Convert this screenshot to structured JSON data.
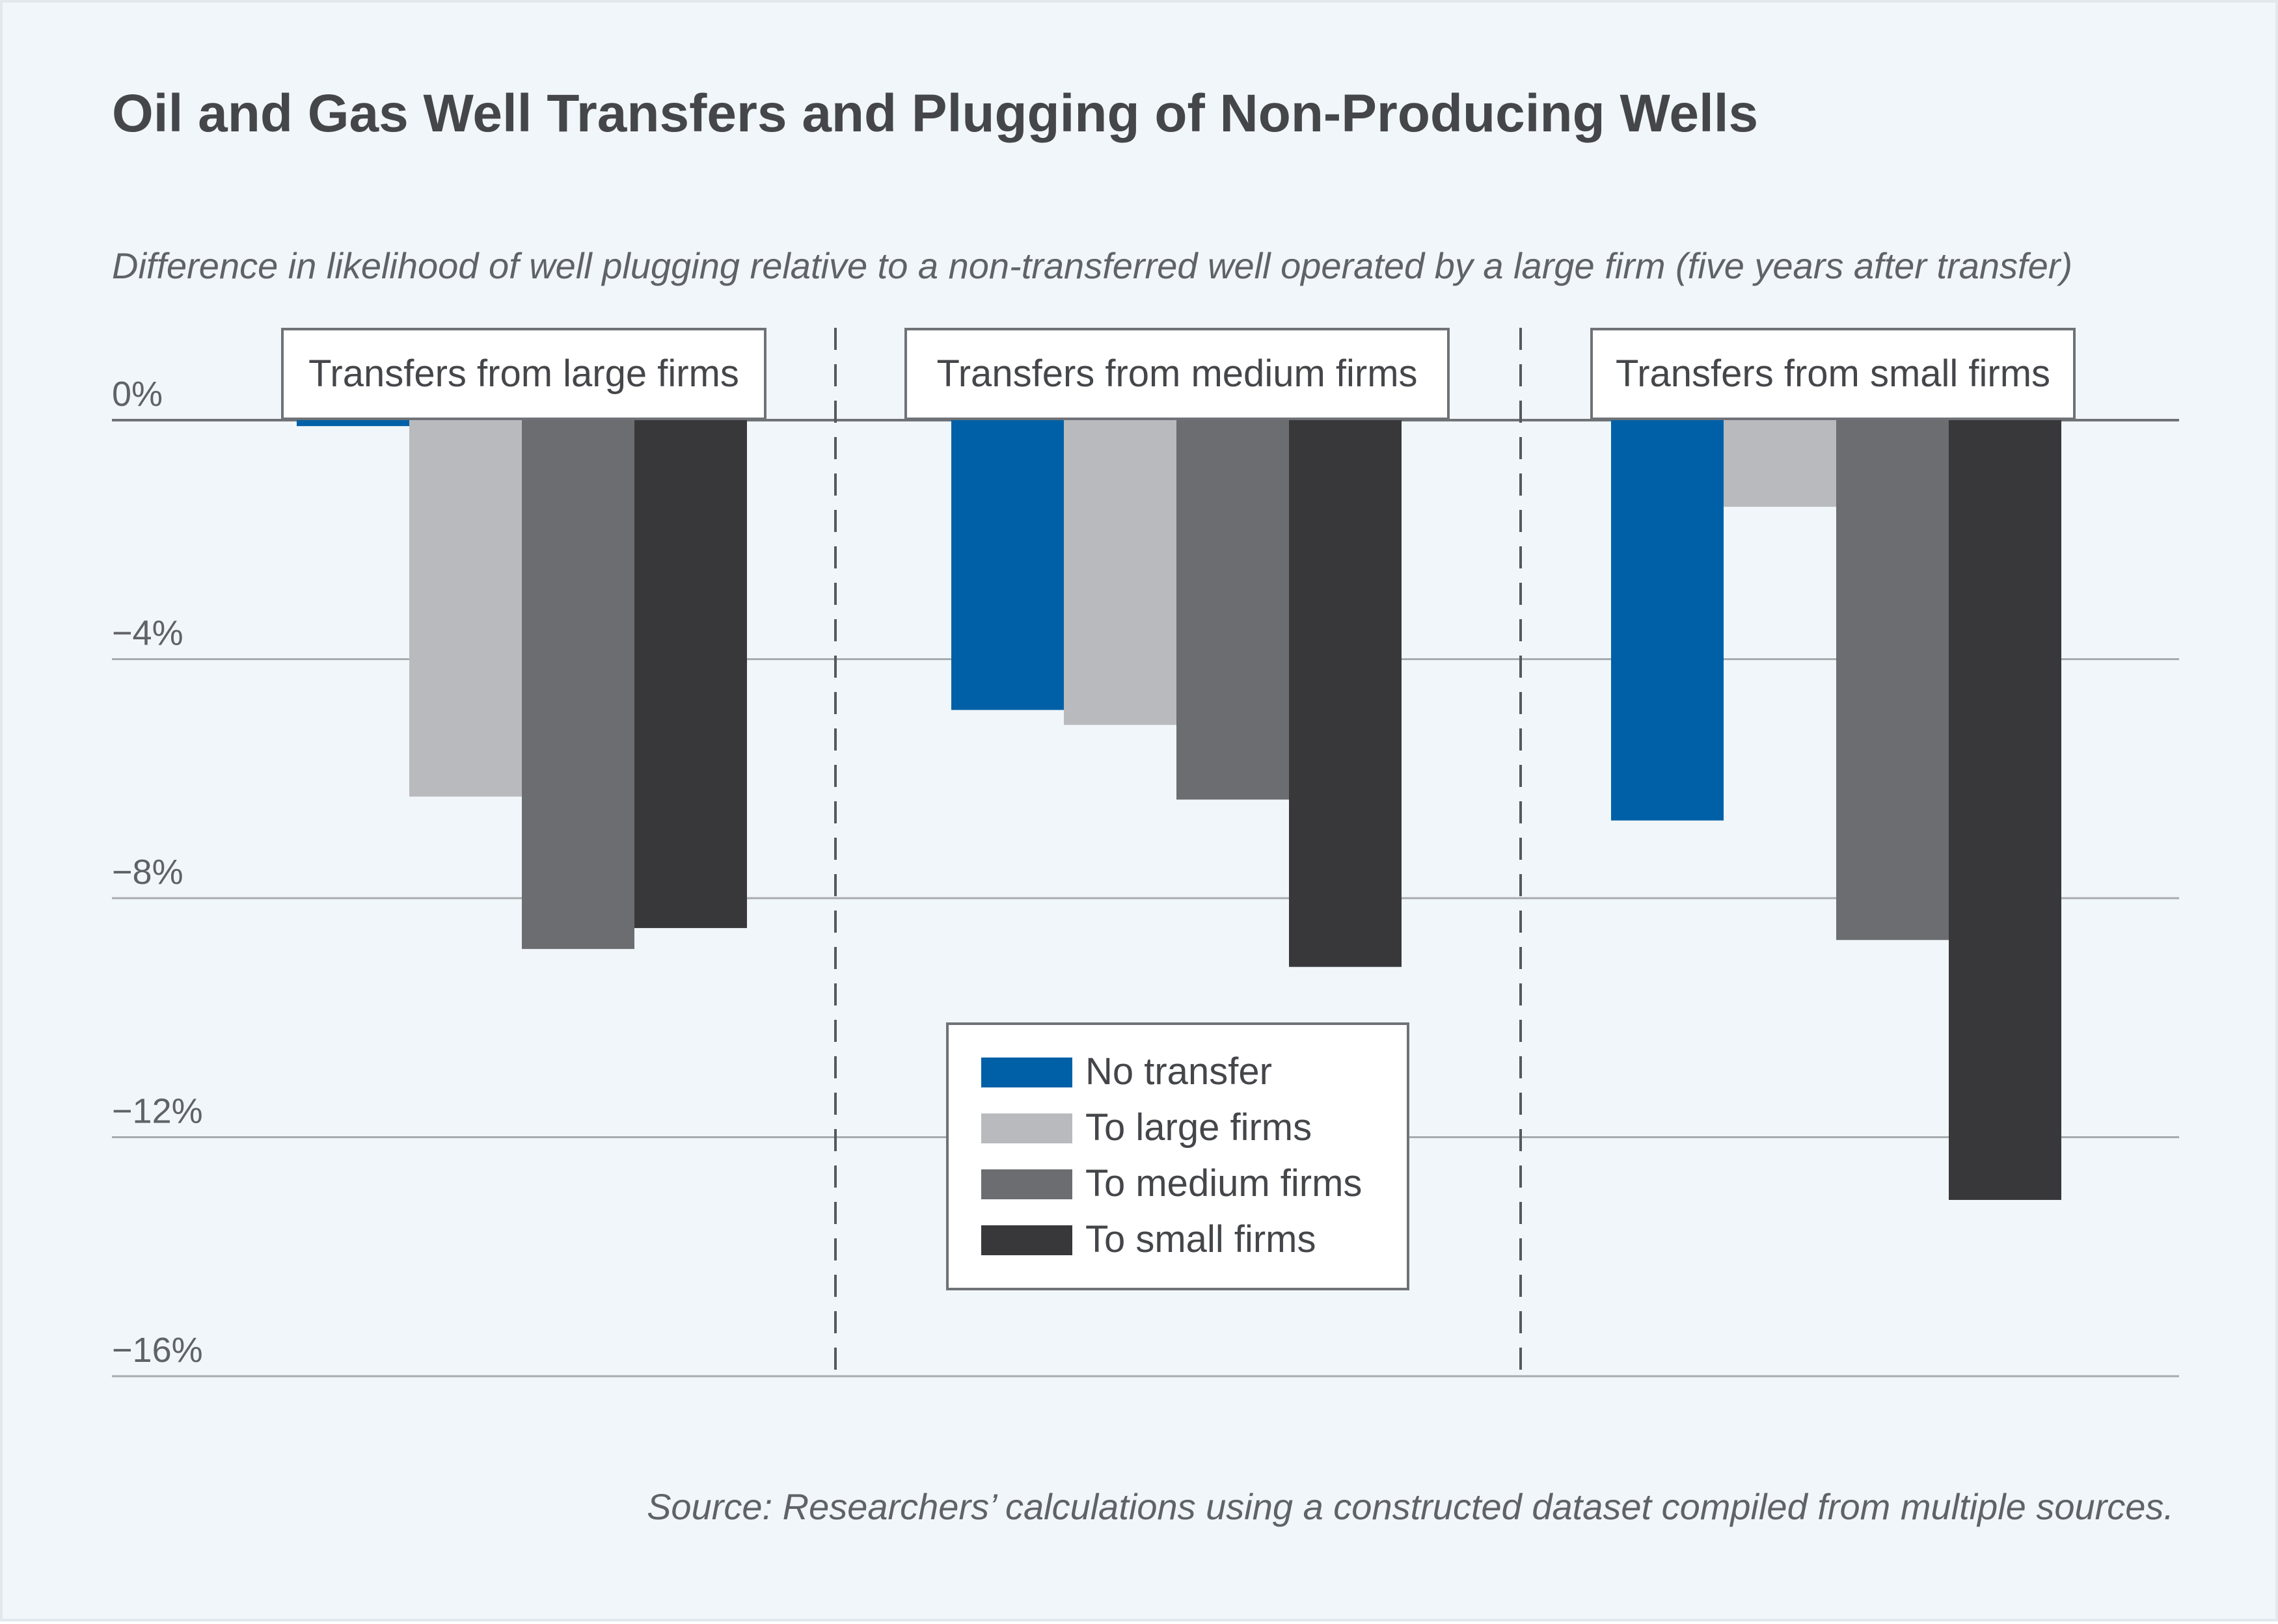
{
  "title": "Oil and Gas Well Transfers and Plugging of Non-Producing Wells",
  "subtitle": "Difference in likelihood of well plugging relative to a non-transferred well operated by a large firm (five years after transfer)",
  "source": "Source: Researchers’ calculations using a constructed dataset compiled from multiple sources.",
  "colors": {
    "background": "#f1f6fa",
    "No transfer": "#0060a7",
    "To large firms": "#b9babd",
    "To medium firms": "#6c6d70",
    "To small firms": "#38383b",
    "gridline": "#a8abae",
    "text": "#444649"
  },
  "chart_data": {
    "type": "bar",
    "categories": [
      "Transfers from large firms",
      "Transfers from medium firms",
      "Transfers from small firms"
    ],
    "series": [
      {
        "name": "No transfer",
        "values": [
          -0.1,
          -4.85,
          -6.7
        ]
      },
      {
        "name": "To large firms",
        "values": [
          -6.3,
          -5.1,
          -1.45
        ]
      },
      {
        "name": "To medium firms",
        "values": [
          -8.85,
          -6.35,
          -8.7
        ]
      },
      {
        "name": "To small firms",
        "values": [
          -8.5,
          -9.15,
          -13.05
        ]
      }
    ],
    "ylim": [
      -16,
      0
    ],
    "yticks": [
      0,
      -4,
      -8,
      -12,
      -16
    ],
    "ytick_labels": [
      "0%",
      "−4%",
      "−8%",
      "−12%",
      "−16%"
    ],
    "xlabel": "",
    "ylabel": "",
    "grid": true,
    "legend_position": "bottom-center"
  }
}
